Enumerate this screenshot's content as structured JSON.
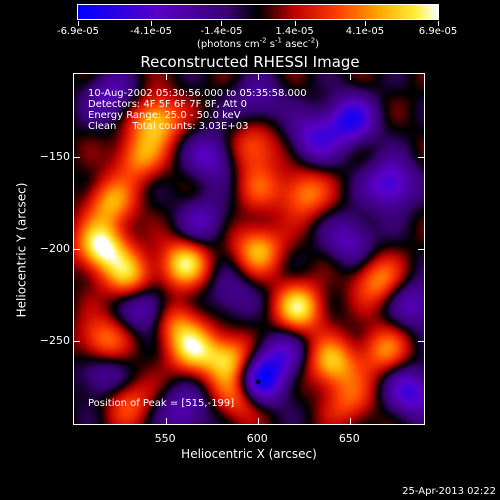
{
  "colorbar": {
    "tick_labels": [
      "-6.9e-05",
      "-4.1e-05",
      "-1.4e-05",
      "1.4e-05",
      "4.1e-05",
      "6.9e-05"
    ],
    "tick_values": [
      -6.9e-05,
      -4.1e-05,
      -1.4e-05,
      1.4e-05,
      4.1e-05,
      6.9e-05
    ],
    "range": [
      -6.9e-05,
      6.9e-05
    ],
    "units_prefix": "(photons cm",
    "units_exp1": "-2",
    "units_mid": " s",
    "units_exp2": "-1",
    "units_mid2": " asec",
    "units_exp3": "-2",
    "units_suffix": ")"
  },
  "chart_data": {
    "type": "heatmap",
    "title": "Reconstructed RHESSI Image",
    "xlabel": "Heliocentric X (arcsec)",
    "ylabel": "Heliocentric Y (arcsec)",
    "xlim": [
      500,
      690
    ],
    "ylim": [
      -295,
      -105
    ],
    "x_ticks": [
      550,
      600,
      650
    ],
    "y_ticks": [
      -150,
      -200,
      -250
    ],
    "x_tick_labels": [
      "550",
      "600",
      "650"
    ],
    "y_tick_labels": [
      "−150",
      "−200",
      "−250"
    ],
    "colormap": "blue-purple-black-red-orange-yellow-white",
    "annotations": {
      "line1": "10-Aug-2002 05:30:56.000 to 05:35:58.000",
      "line2": "Detectors: 4F 5F 6F 7F 8F, Att 0",
      "line3": "Energy Range: 25.0 - 50.0 keV",
      "line4": "Clean     Total counts: 3.03E+03",
      "peak": "Position of Peak = [515,-199]"
    },
    "peak_position": [
      515,
      -199
    ],
    "bright_sources": [
      {
        "x": 515,
        "y": -199,
        "intensity": 1.0
      },
      {
        "x": 545,
        "y": -130,
        "intensity": 0.8
      },
      {
        "x": 535,
        "y": -150,
        "intensity": 0.6
      },
      {
        "x": 598,
        "y": -145,
        "intensity": 0.55
      },
      {
        "x": 625,
        "y": -170,
        "intensity": 0.6
      },
      {
        "x": 520,
        "y": -175,
        "intensity": 0.65
      },
      {
        "x": 560,
        "y": -208,
        "intensity": 0.85
      },
      {
        "x": 530,
        "y": -215,
        "intensity": 0.7
      },
      {
        "x": 600,
        "y": -200,
        "intensity": 0.7
      },
      {
        "x": 622,
        "y": -232,
        "intensity": 0.85
      },
      {
        "x": 665,
        "y": -217,
        "intensity": 0.6
      },
      {
        "x": 515,
        "y": -250,
        "intensity": 0.6
      },
      {
        "x": 565,
        "y": -255,
        "intensity": 0.75
      },
      {
        "x": 585,
        "y": -260,
        "intensity": 0.8
      },
      {
        "x": 590,
        "y": -280,
        "intensity": 0.65
      },
      {
        "x": 640,
        "y": -262,
        "intensity": 0.75
      },
      {
        "x": 668,
        "y": -255,
        "intensity": 0.55
      },
      {
        "x": 555,
        "y": -240,
        "intensity": 0.55
      },
      {
        "x": 530,
        "y": -283,
        "intensity": 0.45
      },
      {
        "x": 650,
        "y": -283,
        "intensity": 0.45
      },
      {
        "x": 600,
        "y": -167,
        "intensity": 0.35
      }
    ],
    "dark_sources": [
      {
        "x": 650,
        "y": -130,
        "intensity": -0.8
      },
      {
        "x": 672,
        "y": -165,
        "intensity": -0.75
      },
      {
        "x": 630,
        "y": -140,
        "intensity": -0.6
      },
      {
        "x": 600,
        "y": -272,
        "intensity": -1.0
      },
      {
        "x": 612,
        "y": -258,
        "intensity": -0.55
      },
      {
        "x": 683,
        "y": -278,
        "intensity": -0.7
      },
      {
        "x": 540,
        "y": -232,
        "intensity": -0.6
      },
      {
        "x": 575,
        "y": -150,
        "intensity": -0.55
      },
      {
        "x": 520,
        "y": -118,
        "intensity": -0.5
      },
      {
        "x": 600,
        "y": -120,
        "intensity": -0.4
      },
      {
        "x": 650,
        "y": -195,
        "intensity": -0.5
      },
      {
        "x": 570,
        "y": -185,
        "intensity": -0.45
      },
      {
        "x": 515,
        "y": -268,
        "intensity": -0.45
      },
      {
        "x": 560,
        "y": -288,
        "intensity": -0.5
      },
      {
        "x": 685,
        "y": -230,
        "intensity": -0.5
      },
      {
        "x": 585,
        "y": -225,
        "intensity": -0.35
      }
    ]
  },
  "footer": {
    "timestamp": "25-Apr-2013 02:22"
  }
}
